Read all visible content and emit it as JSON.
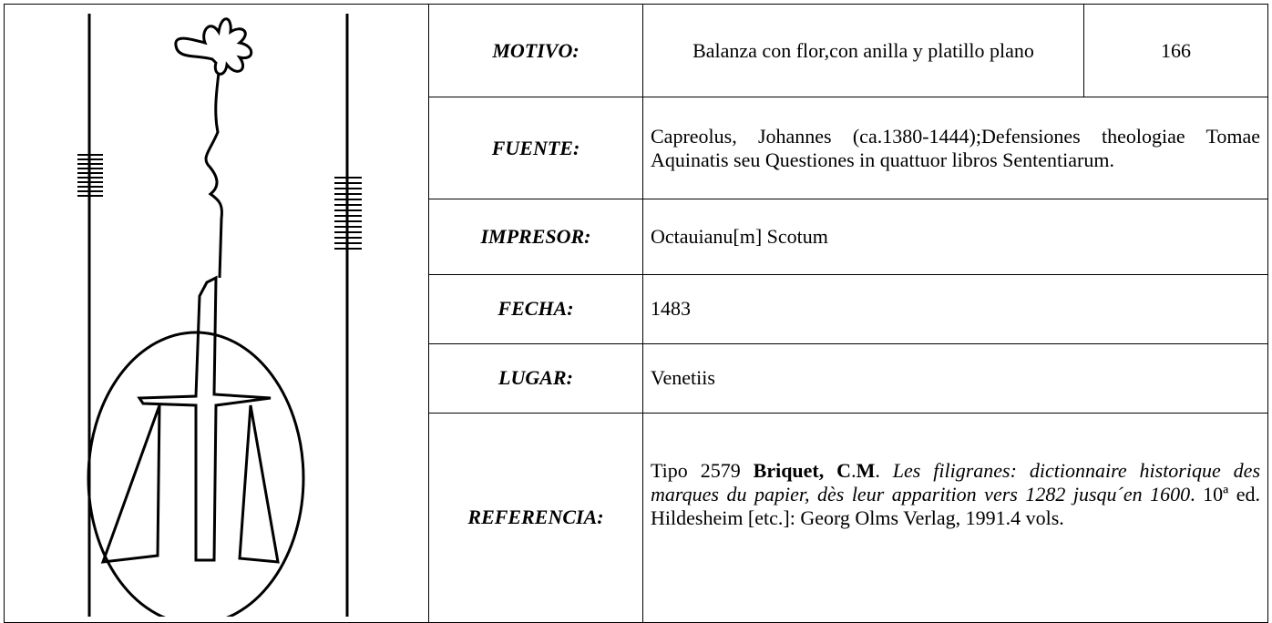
{
  "record": {
    "number": "166",
    "rows": [
      {
        "label": "MOTIVO:",
        "value": "Balanza con flor,con anilla y platillo plano"
      },
      {
        "label": "FUENTE:",
        "value": "Capreolus, Johannes (ca.1380-1444);Defensiones theologiae Tomae Aquinatis seu Questiones in quattuor libros Sententiarum."
      },
      {
        "label": "IMPRESOR:",
        "value": "Octauianu[m] Scotum"
      },
      {
        "label": "FECHA:",
        "value": "1483"
      },
      {
        "label": "LUGAR:",
        "value": "Venetiis"
      },
      {
        "label": "REFERENCIA:",
        "parts": [
          "Tipo 2579 ",
          "Briquet, C",
          ".",
          "M",
          ". ",
          "Les filigranes: dictionnaire historique des marques du papier, dès leur apparition vers 1282 jusqu´en 1600",
          ". 10ª ed. Hildesheim [etc.]: Georg Olms Verlag, 1991.4 vols."
        ]
      }
    ]
  }
}
